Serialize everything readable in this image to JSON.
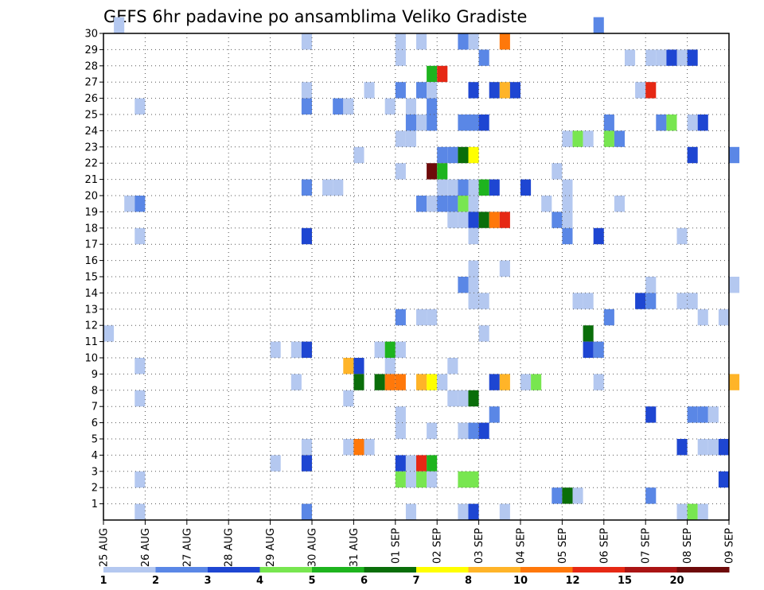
{
  "chart_data": {
    "type": "heatmap",
    "title": "GEFS 6hr padavine po ansamblima Veliko Gradiste",
    "xlabel": "",
    "ylabel": "",
    "x_ticks": [
      "25 AUG",
      "26 AUG",
      "27 AUG",
      "28 AUG",
      "29 AUG",
      "30 AUG",
      "31 AUG",
      "01 SEP",
      "02 SEP",
      "03 SEP",
      "04 SEP",
      "05 SEP",
      "06 SEP",
      "07 SEP",
      "08 SEP",
      "09 SEP"
    ],
    "xlim_days": [
      0,
      15
    ],
    "y_ticks": [
      1,
      2,
      3,
      4,
      5,
      6,
      7,
      8,
      9,
      10,
      11,
      12,
      13,
      14,
      15,
      16,
      17,
      18,
      19,
      20,
      21,
      22,
      23,
      24,
      25,
      26,
      27,
      28,
      29,
      30
    ],
    "ylim": [
      0,
      30
    ],
    "grid": true,
    "colorbar": {
      "labels": [
        "1",
        "2",
        "3",
        "4",
        "5",
        "6",
        "7",
        "8",
        "10",
        "12",
        "15",
        "20"
      ],
      "colors": [
        "#b4c8f0",
        "#5a87e6",
        "#1e46d2",
        "#78e650",
        "#1eb41e",
        "#0a6e0a",
        "#ffff00",
        "#ffb428",
        "#ff780a",
        "#e62814",
        "#aa1414",
        "#6e0a0a"
      ]
    },
    "cells_note": "member, forecast step (6h index from 25 AUG 00Z), color class index",
    "cells": [
      [
        30,
        1,
        0
      ],
      [
        30,
        47,
        1
      ],
      [
        29,
        19,
        0
      ],
      [
        29,
        28,
        0
      ],
      [
        29,
        30,
        0
      ],
      [
        29,
        34,
        1
      ],
      [
        29,
        35,
        0
      ],
      [
        29,
        38,
        8
      ],
      [
        28,
        28,
        0
      ],
      [
        28,
        36,
        1
      ],
      [
        28,
        50,
        0
      ],
      [
        28,
        52,
        0
      ],
      [
        28,
        53,
        0
      ],
      [
        28,
        54,
        2
      ],
      [
        28,
        55,
        0
      ],
      [
        28,
        56,
        2
      ],
      [
        27,
        31,
        4
      ],
      [
        27,
        32,
        9
      ],
      [
        26,
        19,
        0
      ],
      [
        26,
        25,
        0
      ],
      [
        26,
        28,
        1
      ],
      [
        26,
        30,
        1
      ],
      [
        26,
        31,
        0
      ],
      [
        26,
        35,
        2
      ],
      [
        26,
        37,
        2
      ],
      [
        26,
        38,
        7
      ],
      [
        26,
        39,
        2
      ],
      [
        26,
        51,
        0
      ],
      [
        26,
        52,
        9
      ],
      [
        25,
        3,
        0
      ],
      [
        25,
        19,
        1
      ],
      [
        25,
        22,
        1
      ],
      [
        25,
        23,
        0
      ],
      [
        25,
        27,
        0
      ],
      [
        25,
        29,
        0
      ],
      [
        25,
        31,
        1
      ],
      [
        24,
        29,
        1
      ],
      [
        24,
        30,
        0
      ],
      [
        24,
        31,
        1
      ],
      [
        24,
        34,
        1
      ],
      [
        24,
        35,
        1
      ],
      [
        24,
        36,
        2
      ],
      [
        24,
        48,
        1
      ],
      [
        24,
        53,
        1
      ],
      [
        24,
        54,
        3
      ],
      [
        24,
        56,
        0
      ],
      [
        24,
        57,
        2
      ],
      [
        23,
        28,
        0
      ],
      [
        23,
        29,
        0
      ],
      [
        23,
        44,
        0
      ],
      [
        23,
        45,
        3
      ],
      [
        23,
        46,
        0
      ],
      [
        23,
        48,
        3
      ],
      [
        23,
        49,
        1
      ],
      [
        22,
        24,
        0
      ],
      [
        22,
        32,
        1
      ],
      [
        22,
        33,
        1
      ],
      [
        22,
        34,
        5
      ],
      [
        22,
        35,
        6
      ],
      [
        22,
        56,
        2
      ],
      [
        22,
        60,
        1
      ],
      [
        21,
        28,
        0
      ],
      [
        21,
        31,
        11
      ],
      [
        21,
        32,
        4
      ],
      [
        21,
        43,
        0
      ],
      [
        20,
        19,
        1
      ],
      [
        20,
        21,
        0
      ],
      [
        20,
        22,
        0
      ],
      [
        20,
        32,
        0
      ],
      [
        20,
        33,
        0
      ],
      [
        20,
        34,
        1
      ],
      [
        20,
        35,
        0
      ],
      [
        20,
        36,
        4
      ],
      [
        20,
        37,
        2
      ],
      [
        20,
        40,
        2
      ],
      [
        20,
        44,
        0
      ],
      [
        19,
        2,
        0
      ],
      [
        19,
        3,
        1
      ],
      [
        19,
        30,
        1
      ],
      [
        19,
        31,
        0
      ],
      [
        19,
        32,
        1
      ],
      [
        19,
        33,
        1
      ],
      [
        19,
        34,
        3
      ],
      [
        19,
        35,
        0
      ],
      [
        19,
        42,
        0
      ],
      [
        19,
        44,
        0
      ],
      [
        19,
        49,
        0
      ],
      [
        18,
        33,
        0
      ],
      [
        18,
        34,
        0
      ],
      [
        18,
        35,
        2
      ],
      [
        18,
        36,
        5
      ],
      [
        18,
        37,
        8
      ],
      [
        18,
        38,
        9
      ],
      [
        18,
        43,
        1
      ],
      [
        18,
        44,
        0
      ],
      [
        17,
        3,
        0
      ],
      [
        17,
        19,
        2
      ],
      [
        17,
        35,
        0
      ],
      [
        17,
        44,
        1
      ],
      [
        17,
        47,
        2
      ],
      [
        17,
        55,
        0
      ],
      [
        15,
        35,
        0
      ],
      [
        15,
        38,
        0
      ],
      [
        14,
        34,
        1
      ],
      [
        14,
        35,
        0
      ],
      [
        14,
        52,
        0
      ],
      [
        14,
        60,
        0
      ],
      [
        13,
        35,
        0
      ],
      [
        13,
        36,
        0
      ],
      [
        13,
        45,
        0
      ],
      [
        13,
        46,
        0
      ],
      [
        13,
        51,
        2
      ],
      [
        13,
        52,
        1
      ],
      [
        13,
        55,
        0
      ],
      [
        13,
        56,
        0
      ],
      [
        12,
        28,
        1
      ],
      [
        12,
        30,
        0
      ],
      [
        12,
        31,
        0
      ],
      [
        12,
        48,
        1
      ],
      [
        12,
        57,
        0
      ],
      [
        12,
        59,
        0
      ],
      [
        11,
        0,
        0
      ],
      [
        11,
        36,
        0
      ],
      [
        11,
        46,
        5
      ],
      [
        10,
        16,
        0
      ],
      [
        10,
        18,
        0
      ],
      [
        10,
        19,
        2
      ],
      [
        10,
        26,
        0
      ],
      [
        10,
        27,
        4
      ],
      [
        10,
        28,
        0
      ],
      [
        10,
        46,
        2
      ],
      [
        10,
        47,
        1
      ],
      [
        9,
        3,
        0
      ],
      [
        9,
        23,
        7
      ],
      [
        9,
        24,
        2
      ],
      [
        9,
        27,
        0
      ],
      [
        9,
        33,
        0
      ],
      [
        8,
        18,
        0
      ],
      [
        8,
        24,
        5
      ],
      [
        8,
        26,
        5
      ],
      [
        8,
        27,
        8
      ],
      [
        8,
        28,
        8
      ],
      [
        8,
        30,
        7
      ],
      [
        8,
        31,
        6
      ],
      [
        8,
        32,
        0
      ],
      [
        8,
        37,
        2
      ],
      [
        8,
        38,
        7
      ],
      [
        8,
        40,
        0
      ],
      [
        8,
        41,
        3
      ],
      [
        8,
        47,
        0
      ],
      [
        8,
        60,
        7
      ],
      [
        7,
        3,
        0
      ],
      [
        7,
        23,
        0
      ],
      [
        7,
        33,
        0
      ],
      [
        7,
        34,
        0
      ],
      [
        7,
        35,
        5
      ],
      [
        6,
        28,
        0
      ],
      [
        6,
        37,
        1
      ],
      [
        6,
        52,
        2
      ],
      [
        6,
        56,
        1
      ],
      [
        6,
        57,
        1
      ],
      [
        6,
        58,
        0
      ],
      [
        5,
        28,
        0
      ],
      [
        5,
        31,
        0
      ],
      [
        5,
        34,
        0
      ],
      [
        5,
        35,
        1
      ],
      [
        5,
        36,
        2
      ],
      [
        4,
        19,
        0
      ],
      [
        4,
        23,
        0
      ],
      [
        4,
        24,
        8
      ],
      [
        4,
        25,
        0
      ],
      [
        4,
        55,
        2
      ],
      [
        4,
        57,
        0
      ],
      [
        4,
        58,
        0
      ],
      [
        4,
        59,
        2
      ],
      [
        3,
        16,
        0
      ],
      [
        3,
        19,
        2
      ],
      [
        3,
        28,
        2
      ],
      [
        3,
        29,
        0
      ],
      [
        3,
        30,
        9
      ],
      [
        3,
        31,
        4
      ],
      [
        2,
        3,
        0
      ],
      [
        2,
        28,
        3
      ],
      [
        2,
        29,
        0
      ],
      [
        2,
        30,
        3
      ],
      [
        2,
        31,
        0
      ],
      [
        2,
        34,
        3
      ],
      [
        2,
        35,
        3
      ],
      [
        2,
        59,
        2
      ],
      [
        1,
        43,
        1
      ],
      [
        1,
        44,
        5
      ],
      [
        1,
        45,
        0
      ],
      [
        1,
        52,
        1
      ],
      [
        0,
        3,
        0
      ],
      [
        0,
        19,
        1
      ],
      [
        0,
        29,
        0
      ],
      [
        0,
        34,
        0
      ],
      [
        0,
        35,
        2
      ],
      [
        0,
        38,
        0
      ],
      [
        0,
        55,
        0
      ],
      [
        0,
        56,
        3
      ],
      [
        0,
        57,
        0
      ]
    ]
  }
}
